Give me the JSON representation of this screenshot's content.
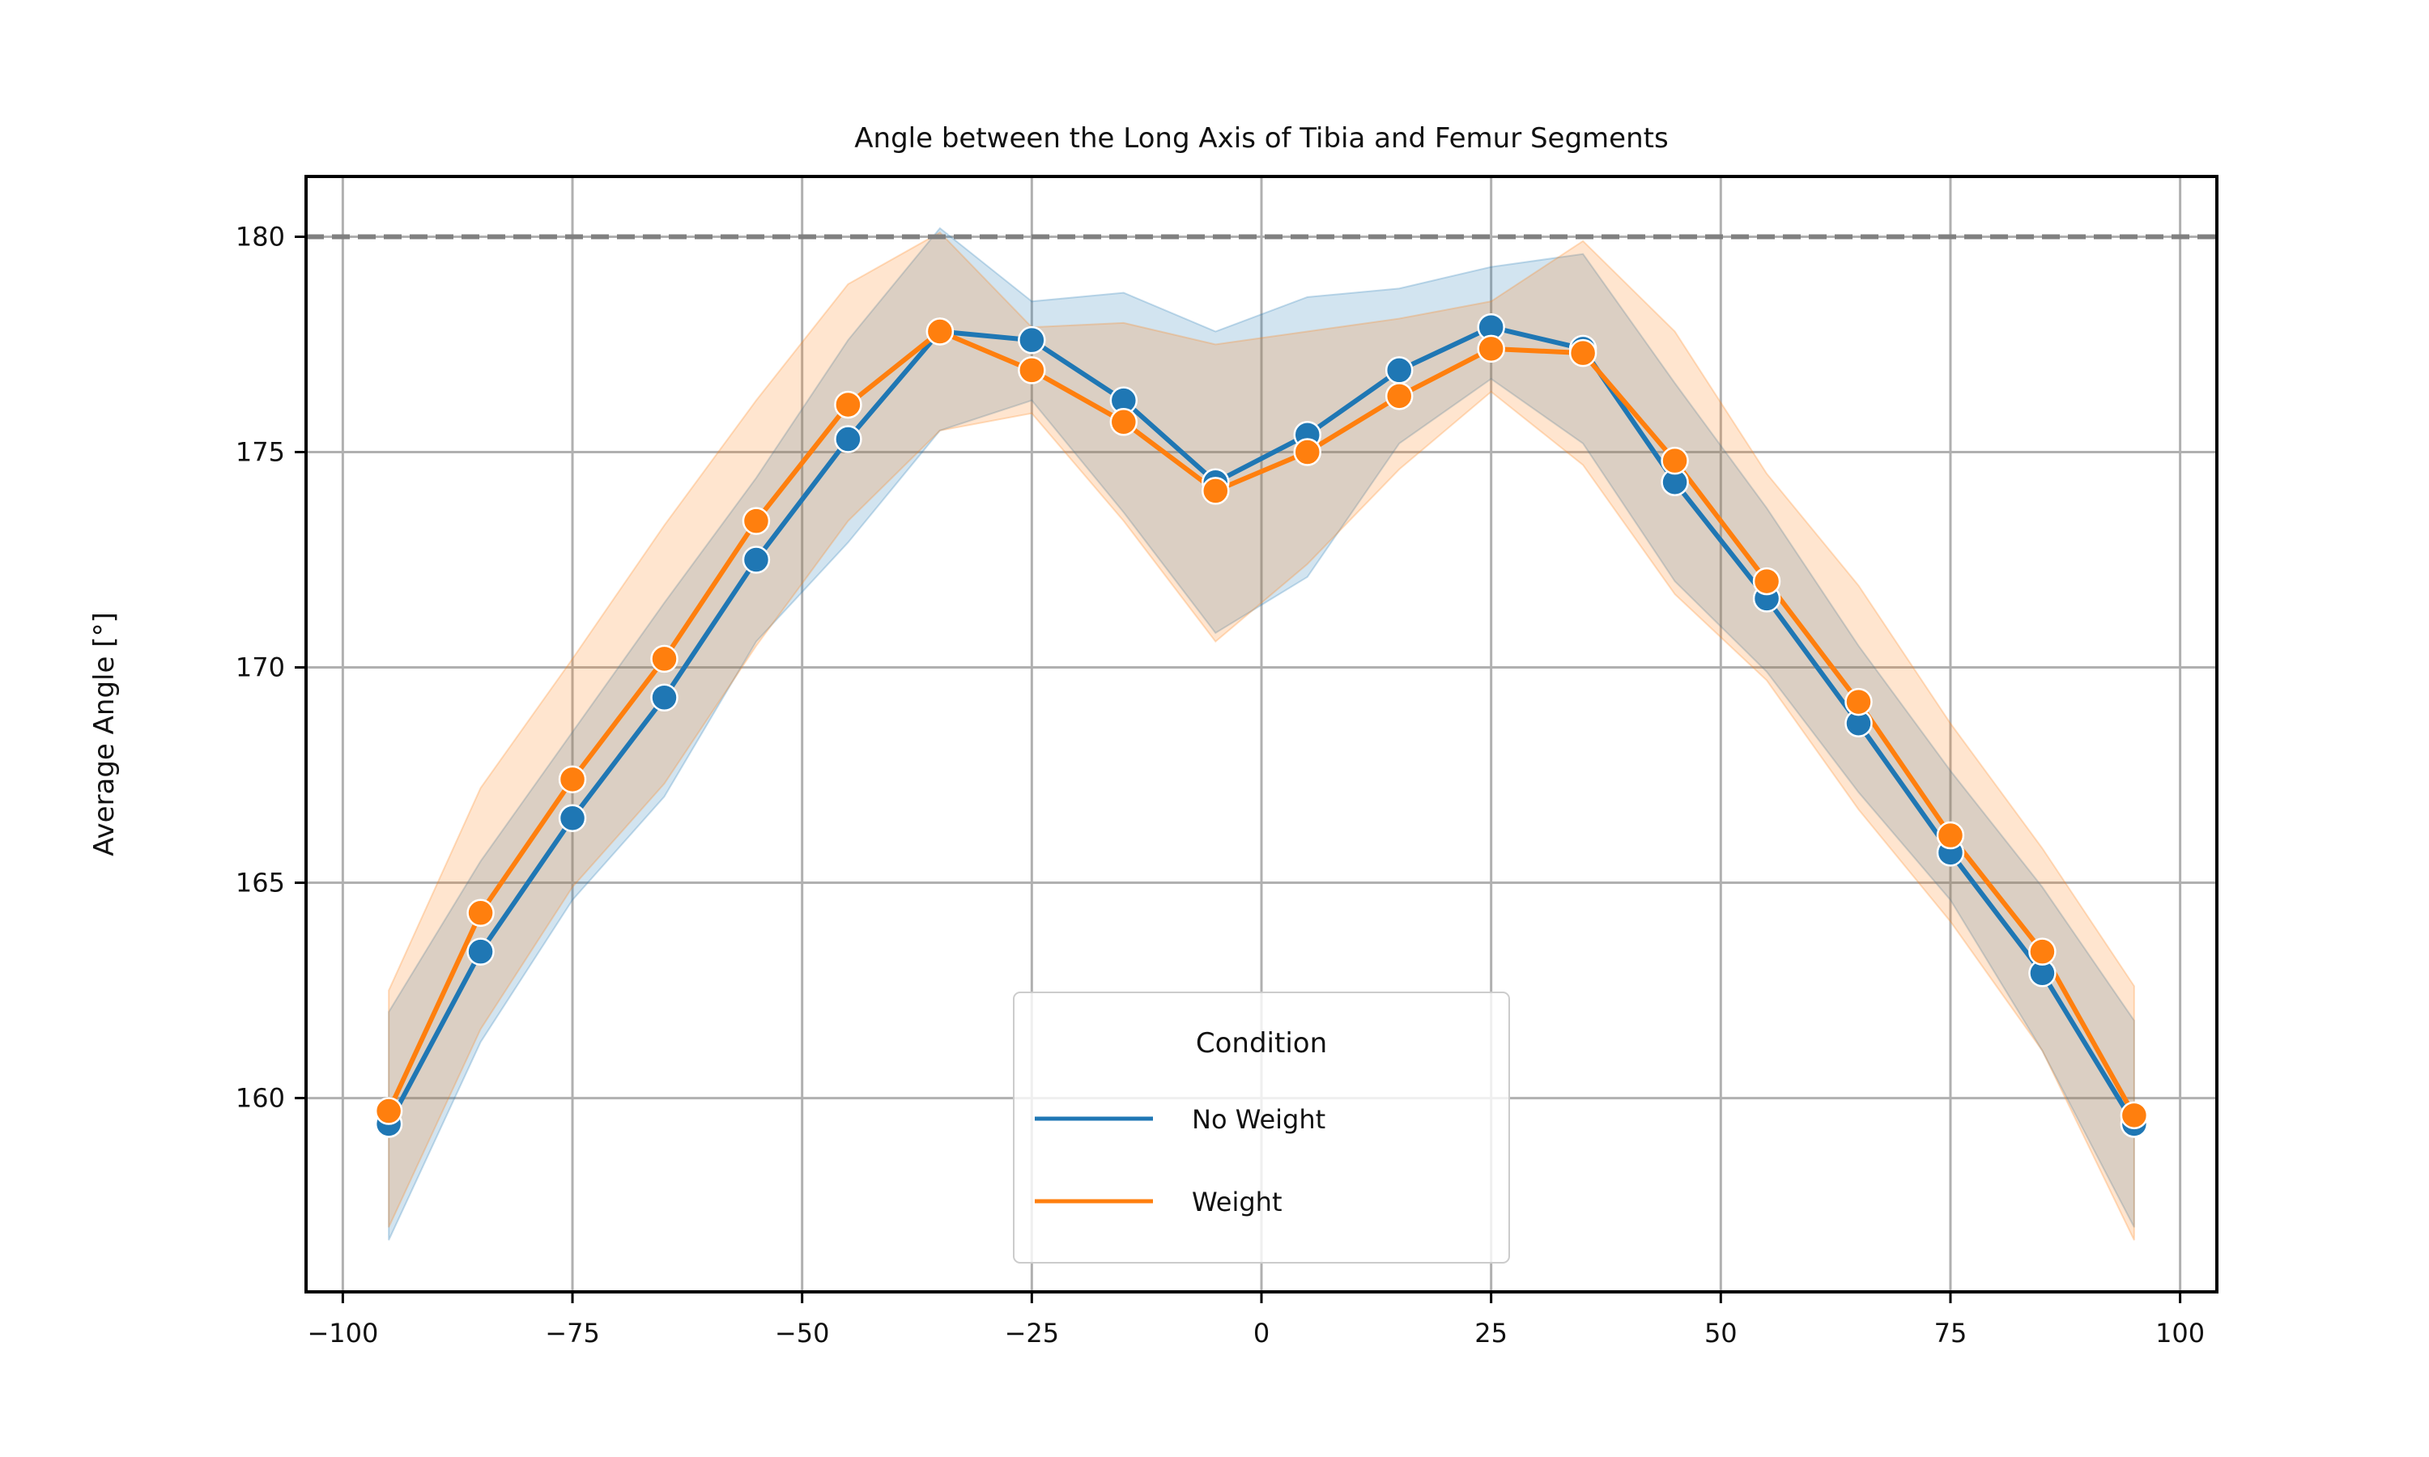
{
  "chart_data": {
    "type": "line",
    "title": "Angle between the Long Axis of Tibia and Femur Segments",
    "xlabel": "",
    "ylabel": "Average Angle [°]",
    "xlim": [
      -104,
      104
    ],
    "ylim": [
      155.5,
      181.4
    ],
    "xticks": [
      -100,
      -75,
      -50,
      -25,
      0,
      25,
      50,
      75,
      100
    ],
    "xtick_labels": [
      "−100",
      "−75",
      "−50",
      "−25",
      "0",
      "25",
      "50",
      "75",
      "100"
    ],
    "yticks": [
      160,
      165,
      170,
      175,
      180
    ],
    "ytick_labels": [
      "160",
      "165",
      "170",
      "175",
      "180"
    ],
    "grid": true,
    "reference_line": {
      "y": 180,
      "style": "dashed",
      "color": "#808080"
    },
    "x": [
      -95,
      -85,
      -75,
      -65,
      -55,
      -45,
      -35,
      -25,
      -15,
      -5,
      5,
      15,
      25,
      35,
      45,
      55,
      65,
      75,
      85,
      95
    ],
    "series": [
      {
        "name": "No Weight",
        "color": "#1f77b4",
        "values": [
          159.4,
          163.4,
          166.5,
          169.3,
          172.5,
          175.3,
          177.8,
          177.6,
          176.2,
          174.3,
          175.4,
          176.9,
          177.9,
          177.4,
          174.3,
          171.6,
          168.7,
          165.7,
          162.9,
          159.4
        ],
        "ci_lower": [
          156.7,
          161.3,
          164.6,
          167.0,
          170.6,
          172.9,
          175.5,
          176.2,
          173.6,
          170.8,
          172.1,
          175.2,
          176.7,
          175.2,
          172.0,
          169.9,
          167.1,
          164.6,
          161.1,
          157.0
        ],
        "ci_upper": [
          162.0,
          165.5,
          168.5,
          171.5,
          174.4,
          177.6,
          180.2,
          178.5,
          178.7,
          177.8,
          178.6,
          178.8,
          179.3,
          179.6,
          176.6,
          173.7,
          170.5,
          167.6,
          164.9,
          161.8
        ]
      },
      {
        "name": "Weight",
        "color": "#ff7f0e",
        "values": [
          159.7,
          164.3,
          167.4,
          170.2,
          173.4,
          176.1,
          177.8,
          176.9,
          175.7,
          174.1,
          175.0,
          176.3,
          177.4,
          177.3,
          174.8,
          172.0,
          169.2,
          166.1,
          163.4,
          159.6
        ],
        "ci_lower": [
          157.0,
          161.6,
          164.9,
          167.3,
          170.5,
          173.4,
          175.5,
          175.9,
          173.4,
          170.6,
          172.4,
          174.6,
          176.4,
          174.7,
          171.7,
          169.7,
          166.7,
          164.1,
          161.1,
          156.7
        ],
        "ci_upper": [
          162.5,
          167.2,
          170.2,
          173.3,
          176.2,
          178.9,
          180.1,
          177.9,
          178.0,
          177.5,
          177.8,
          178.1,
          178.5,
          179.9,
          177.8,
          174.5,
          171.9,
          168.7,
          165.8,
          162.6
        ]
      }
    ],
    "legend": {
      "title": "Condition",
      "placement": "lower-center",
      "entries": [
        "No Weight",
        "Weight"
      ]
    }
  }
}
